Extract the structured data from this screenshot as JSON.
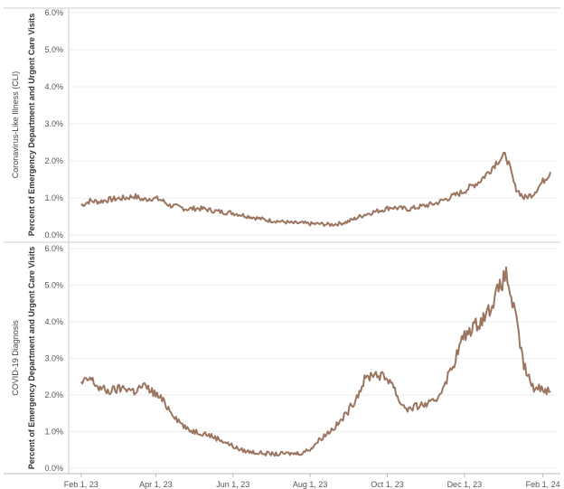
{
  "chart_data": {
    "type": "line",
    "x_axis": {
      "tick_labels": [
        "Feb 1, 23",
        "Apr 1, 23",
        "Jun 1, 23",
        "Aug 1, 23",
        "Oct 1, 23",
        "Dec 1, 23",
        "Feb 1, 24"
      ],
      "range": [
        "2023-01-25",
        "2024-02-12"
      ]
    },
    "line_color": "#9c7560",
    "grid": "horizontal",
    "panels": [
      {
        "row_label": "Coronavirus-Like Illness (CLI)",
        "ylabel": "Percent of Emergency Department and Urgent Care Visits",
        "ylim": [
          0,
          6
        ],
        "y_tick_labels": [
          "0.0%",
          "1.0%",
          "2.0%",
          "3.0%",
          "4.0%",
          "5.0%",
          "6.0%"
        ],
        "series": [
          {
            "x": [
              "2023-02-01",
              "2023-02-08",
              "2023-02-15",
              "2023-02-22",
              "2023-03-01",
              "2023-03-08",
              "2023-03-15",
              "2023-03-22",
              "2023-03-29",
              "2023-04-05",
              "2023-04-12",
              "2023-04-19",
              "2023-04-26",
              "2023-05-03",
              "2023-05-10",
              "2023-05-17",
              "2023-05-24",
              "2023-05-31",
              "2023-06-07",
              "2023-06-14",
              "2023-06-21",
              "2023-06-28",
              "2023-07-05",
              "2023-07-12",
              "2023-07-19",
              "2023-07-26",
              "2023-08-02",
              "2023-08-09",
              "2023-08-16",
              "2023-08-23",
              "2023-08-30",
              "2023-09-06",
              "2023-09-13",
              "2023-09-20",
              "2023-09-27",
              "2023-10-04",
              "2023-10-11",
              "2023-10-18",
              "2023-10-25",
              "2023-11-01",
              "2023-11-08",
              "2023-11-15",
              "2023-11-22",
              "2023-11-29",
              "2023-12-06",
              "2023-12-13",
              "2023-12-20",
              "2023-12-27",
              "2024-01-03",
              "2024-01-10",
              "2024-01-17",
              "2024-01-24",
              "2024-01-31",
              "2024-02-07"
            ],
            "y": [
              0.8,
              0.92,
              0.9,
              0.95,
              0.98,
              1.0,
              1.05,
              0.95,
              1.0,
              0.95,
              0.8,
              0.75,
              0.7,
              0.72,
              0.7,
              0.65,
              0.62,
              0.6,
              0.55,
              0.5,
              0.45,
              0.4,
              0.38,
              0.35,
              0.32,
              0.32,
              0.3,
              0.3,
              0.28,
              0.3,
              0.35,
              0.45,
              0.55,
              0.62,
              0.68,
              0.75,
              0.72,
              0.7,
              0.75,
              0.8,
              0.85,
              0.95,
              1.05,
              1.15,
              1.3,
              1.45,
              1.7,
              2.0,
              2.15,
              1.3,
              1.0,
              1.1,
              1.4,
              1.7
            ]
          }
        ]
      },
      {
        "row_label": "COVID-19 Diagnosis",
        "ylabel": "Percent of Emergency Department and Urgent Care Visits",
        "ylim": [
          0,
          6
        ],
        "y_tick_labels": [
          "0.0%",
          "1.0%",
          "2.0%",
          "3.0%",
          "4.0%",
          "5.0%",
          "6.0%"
        ],
        "series": [
          {
            "x": [
              "2023-02-01",
              "2023-02-08",
              "2023-02-15",
              "2023-02-22",
              "2023-03-01",
              "2023-03-08",
              "2023-03-15",
              "2023-03-22",
              "2023-03-29",
              "2023-04-05",
              "2023-04-12",
              "2023-04-19",
              "2023-04-26",
              "2023-05-03",
              "2023-05-10",
              "2023-05-17",
              "2023-05-24",
              "2023-05-31",
              "2023-06-07",
              "2023-06-14",
              "2023-06-21",
              "2023-06-28",
              "2023-07-05",
              "2023-07-12",
              "2023-07-19",
              "2023-07-26",
              "2023-08-02",
              "2023-08-09",
              "2023-08-16",
              "2023-08-23",
              "2023-08-30",
              "2023-09-06",
              "2023-09-13",
              "2023-09-20",
              "2023-09-27",
              "2023-10-04",
              "2023-10-11",
              "2023-10-18",
              "2023-10-25",
              "2023-11-01",
              "2023-11-08",
              "2023-11-15",
              "2023-11-22",
              "2023-11-29",
              "2023-12-06",
              "2023-12-13",
              "2023-12-20",
              "2023-12-27",
              "2024-01-03",
              "2024-01-10",
              "2024-01-17",
              "2024-01-24",
              "2024-01-31",
              "2024-02-07"
            ],
            "y": [
              2.3,
              2.45,
              2.2,
              2.1,
              2.15,
              2.2,
              2.1,
              2.25,
              2.1,
              1.9,
              1.6,
              1.3,
              1.05,
              1.0,
              0.95,
              0.85,
              0.75,
              0.62,
              0.5,
              0.45,
              0.42,
              0.4,
              0.38,
              0.4,
              0.4,
              0.42,
              0.55,
              0.8,
              1.0,
              1.2,
              1.5,
              1.9,
              2.4,
              2.6,
              2.5,
              2.4,
              1.8,
              1.6,
              1.7,
              1.75,
              1.8,
              2.3,
              2.8,
              3.5,
              3.8,
              4.0,
              4.3,
              4.8,
              5.3,
              4.2,
              2.8,
              2.2,
              2.2,
              2.1
            ]
          }
        ]
      }
    ]
  }
}
